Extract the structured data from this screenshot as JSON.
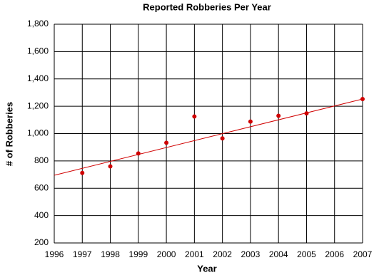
{
  "chart_data": {
    "type": "scatter",
    "title": "Reported Robberies Per Year",
    "xlabel": "Year",
    "ylabel": "# of Robberies",
    "x": [
      1997,
      1998,
      1999,
      2000,
      2001,
      2002,
      2003,
      2004,
      2005,
      2007
    ],
    "values": [
      712,
      760,
      855,
      933,
      1125,
      965,
      1088,
      1130,
      1148,
      1253
    ],
    "color": "#d00000",
    "trendline": {
      "x": [
        1996,
        2007
      ],
      "values": [
        695,
        1253
      ],
      "color": "#d00000"
    },
    "xlim": [
      1996,
      2007
    ],
    "xticks": [
      1996,
      1997,
      1998,
      1999,
      2000,
      2001,
      2002,
      2003,
      2004,
      2005,
      2006,
      2007
    ],
    "ylim": [
      200,
      1800
    ],
    "yticks": [
      200,
      400,
      600,
      800,
      {
        "value": 1000,
        "label": "1,000"
      },
      {
        "value": 1200,
        "label": "1,200"
      },
      {
        "value": 1400,
        "label": "1,400"
      },
      {
        "value": 1600,
        "label": "1,600"
      },
      {
        "value": 1800,
        "label": "1,800"
      }
    ],
    "grid": true
  }
}
